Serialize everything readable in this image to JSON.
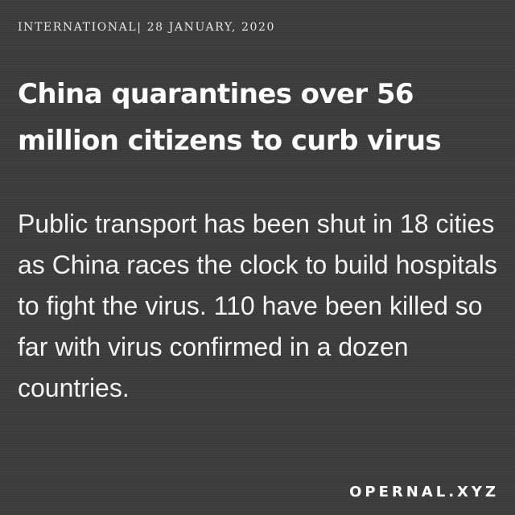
{
  "dateline": "INTERNATIONAL| 28 JANUARY, 2020",
  "headline": "China quarantines over 56 million citizens to curb virus",
  "body": "Public transport has been shut in 18 cities as China races the clock to build hospitals to fight the virus. 110 have been killed so far with virus confirmed in a dozen countries.",
  "brand": "OPERNAL.XYZ",
  "colors": {
    "background": "#3b3b3b",
    "text": "#ffffff"
  }
}
